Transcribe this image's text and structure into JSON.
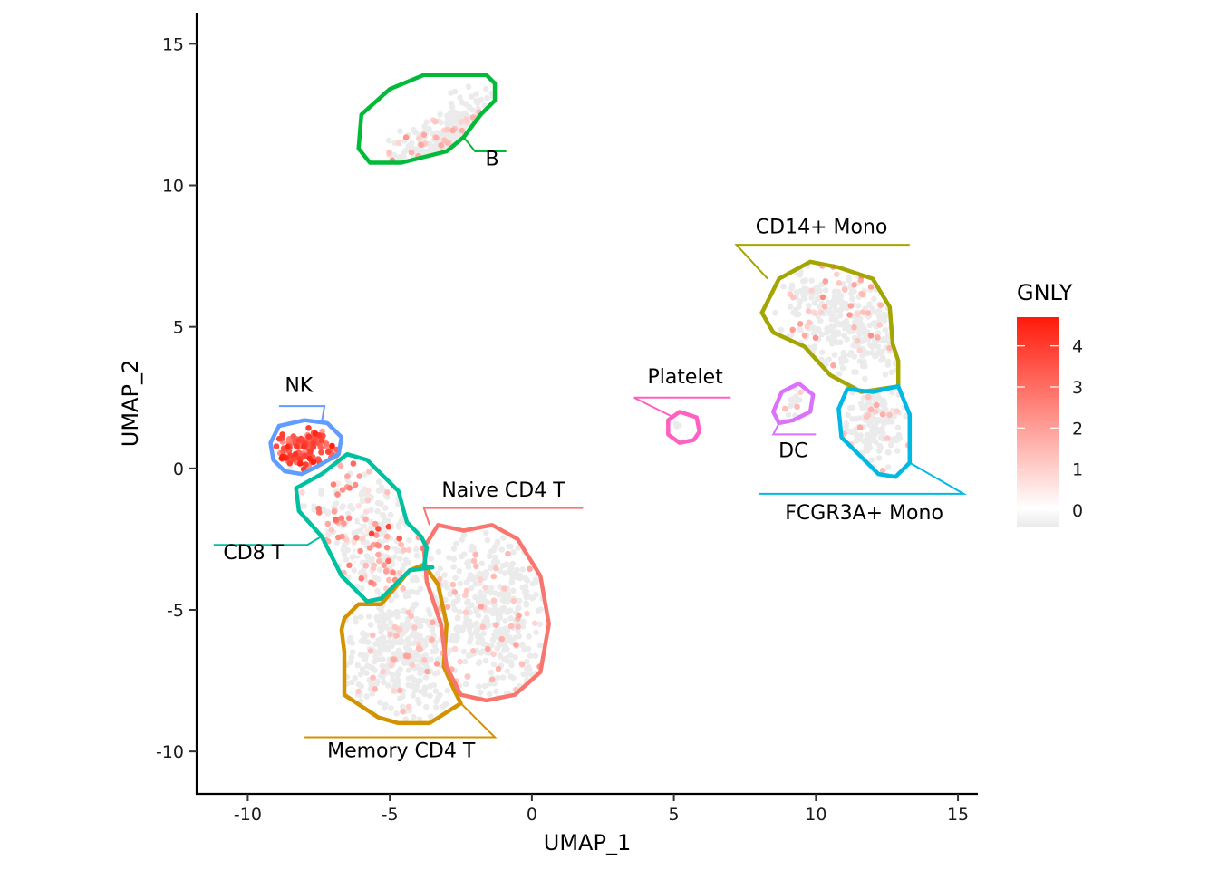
{
  "chart_data": {
    "type": "scatter",
    "title": "",
    "xlabel": "UMAP_1",
    "ylabel": "UMAP_2",
    "xlim": [
      -11.8,
      15.7
    ],
    "ylim": [
      -11.5,
      16.1
    ],
    "x_ticks": [
      -10,
      -5,
      0,
      5,
      10,
      15
    ],
    "x_tick_labels": [
      "-10",
      "-5",
      "0",
      "5",
      "10",
      "15"
    ],
    "y_ticks": [
      -10,
      -5,
      0,
      5,
      10,
      15
    ],
    "y_tick_labels": [
      "-10",
      "-5",
      "0",
      "5",
      "10",
      "15"
    ],
    "grid": false,
    "color_feature": "GNLY",
    "legend": {
      "title": "GNLY",
      "placement": "right",
      "ticks": [
        0,
        1,
        2,
        3,
        4
      ],
      "tick_labels": [
        "0",
        "1",
        "2",
        "3",
        "4"
      ],
      "range": [
        -0.4,
        4.7
      ],
      "low_color": "#ebebeb",
      "mid_color": "#ffffff",
      "high_color": "#ff1a0a"
    },
    "clusters": [
      {
        "name": "B",
        "color": "#00ba38",
        "center": [
          -2.2,
          11.6
        ],
        "spread": [
          1.6,
          0.55
        ],
        "angle": 30,
        "n": 260,
        "expr": 0.1,
        "contour": [
          [
            -6.0,
            12.5
          ],
          [
            -5.0,
            13.4
          ],
          [
            -3.8,
            13.9
          ],
          [
            -1.6,
            13.9
          ],
          [
            -1.3,
            13.6
          ],
          [
            -1.3,
            13.0
          ],
          [
            -1.8,
            12.5
          ],
          [
            -2.4,
            11.7
          ],
          [
            -3.0,
            11.2
          ],
          [
            -4.6,
            10.8
          ],
          [
            -5.7,
            10.8
          ],
          [
            -6.1,
            11.3
          ],
          [
            -6.0,
            12.5
          ]
        ],
        "label_pos": [
          -1.4,
          10.7
        ],
        "leader": [
          [
            -2.4,
            11.7
          ],
          [
            -2.0,
            11.2
          ],
          [
            -0.9,
            11.2
          ]
        ]
      },
      {
        "name": "CD14+ Mono",
        "color": "#a3a500",
        "center": [
          11.1,
          5.2
        ],
        "spread": [
          1.3,
          1.1
        ],
        "angle": -35,
        "n": 330,
        "expr": 0.2,
        "contour": [
          [
            8.1,
            5.5
          ],
          [
            8.7,
            6.7
          ],
          [
            9.8,
            7.3
          ],
          [
            10.8,
            7.1
          ],
          [
            12.0,
            6.7
          ],
          [
            12.6,
            5.7
          ],
          [
            12.7,
            4.4
          ],
          [
            12.9,
            3.8
          ],
          [
            12.9,
            2.9
          ],
          [
            11.6,
            2.7
          ],
          [
            10.5,
            3.3
          ],
          [
            9.6,
            4.3
          ],
          [
            8.5,
            4.8
          ],
          [
            8.1,
            5.5
          ]
        ],
        "label_pos": [
          10.2,
          8.3
        ],
        "leader": [
          [
            13.3,
            7.9
          ],
          [
            7.2,
            7.9
          ],
          [
            8.3,
            6.7
          ]
        ]
      },
      {
        "name": "DC",
        "color": "#db72fb",
        "center": [
          9.3,
          2.3
        ],
        "spread": [
          0.35,
          0.2
        ],
        "angle": 35,
        "n": 14,
        "expr": 0.15,
        "contour": [
          [
            8.5,
            2.0
          ],
          [
            8.8,
            2.7
          ],
          [
            9.4,
            3.0
          ],
          [
            9.9,
            2.6
          ],
          [
            9.8,
            2.0
          ],
          [
            9.2,
            1.7
          ],
          [
            8.7,
            1.6
          ],
          [
            8.5,
            2.0
          ]
        ],
        "label_pos": [
          9.2,
          0.4
        ],
        "leader": [
          [
            8.7,
            1.6
          ],
          [
            8.5,
            1.2
          ],
          [
            10.0,
            1.2
          ]
        ]
      },
      {
        "name": "FCGR3A+ Mono",
        "color": "#00b9e3",
        "center": [
          12.0,
          1.5
        ],
        "spread": [
          0.6,
          0.9
        ],
        "angle": -15,
        "n": 150,
        "expr": 0.2,
        "contour": [
          [
            11.1,
            2.8
          ],
          [
            12.0,
            2.7
          ],
          [
            12.9,
            2.9
          ],
          [
            13.3,
            1.9
          ],
          [
            13.3,
            0.2
          ],
          [
            12.8,
            -0.3
          ],
          [
            12.2,
            -0.2
          ],
          [
            11.6,
            0.4
          ],
          [
            10.9,
            1.1
          ],
          [
            10.8,
            2.1
          ],
          [
            11.1,
            2.8
          ]
        ],
        "label_pos": [
          11.7,
          -1.8
        ],
        "leader": [
          [
            13.3,
            0.2
          ],
          [
            15.2,
            -0.9
          ],
          [
            8.0,
            -0.9
          ]
        ]
      },
      {
        "name": "Memory CD4 T",
        "color": "#d39200",
        "center": [
          -4.5,
          -6.3
        ],
        "spread": [
          1.1,
          1.4
        ],
        "angle": 0,
        "n": 380,
        "expr": 0.15,
        "contour": [
          [
            -6.6,
            -5.3
          ],
          [
            -6.1,
            -4.8
          ],
          [
            -5.3,
            -4.8
          ],
          [
            -4.3,
            -3.6
          ],
          [
            -3.8,
            -3.4
          ],
          [
            -3.3,
            -4.1
          ],
          [
            -3.0,
            -5.5
          ],
          [
            -3.1,
            -7.0
          ],
          [
            -2.7,
            -7.9
          ],
          [
            -2.5,
            -8.3
          ],
          [
            -3.6,
            -9.0
          ],
          [
            -4.7,
            -9.0
          ],
          [
            -5.4,
            -8.8
          ],
          [
            -6.6,
            -8.0
          ],
          [
            -6.6,
            -6.5
          ],
          [
            -6.7,
            -5.7
          ],
          [
            -6.6,
            -5.3
          ]
        ],
        "label_pos": [
          -4.6,
          -10.2
        ],
        "leader": [
          [
            -2.5,
            -8.3
          ],
          [
            -1.3,
            -9.5
          ],
          [
            -8.0,
            -9.5
          ]
        ]
      },
      {
        "name": "Naive CD4 T",
        "color": "#f8766d",
        "center": [
          -1.5,
          -5.3
        ],
        "spread": [
          1.1,
          1.6
        ],
        "angle": 0,
        "n": 420,
        "expr": 0.15,
        "contour": [
          [
            -3.8,
            -2.8
          ],
          [
            -3.3,
            -2.0
          ],
          [
            -2.4,
            -2.2
          ],
          [
            -1.4,
            -2.0
          ],
          [
            -0.5,
            -2.5
          ],
          [
            0.3,
            -3.8
          ],
          [
            0.6,
            -5.5
          ],
          [
            0.3,
            -7.2
          ],
          [
            -0.6,
            -8.0
          ],
          [
            -1.6,
            -8.2
          ],
          [
            -2.5,
            -8.0
          ],
          [
            -3.0,
            -7.0
          ],
          [
            -3.2,
            -5.5
          ],
          [
            -3.7,
            -4.0
          ],
          [
            -3.8,
            -2.8
          ]
        ],
        "label_pos": [
          -1.0,
          -1.0
        ],
        "leader": [
          [
            1.8,
            -1.4
          ],
          [
            -3.8,
            -1.4
          ],
          [
            -3.6,
            -2.0
          ]
        ]
      },
      {
        "name": "NK",
        "color": "#619cff",
        "center": [
          -8.1,
          0.65
        ],
        "spread": [
          0.55,
          0.35
        ],
        "angle": 0,
        "n": 150,
        "expr": 3.1,
        "contour": [
          [
            -9.2,
            0.9
          ],
          [
            -8.9,
            1.5
          ],
          [
            -8.0,
            1.7
          ],
          [
            -7.2,
            1.6
          ],
          [
            -6.7,
            1.1
          ],
          [
            -6.8,
            0.5
          ],
          [
            -7.5,
            0.1
          ],
          [
            -8.1,
            -0.2
          ],
          [
            -8.7,
            -0.1
          ],
          [
            -9.1,
            0.3
          ],
          [
            -9.2,
            0.9
          ]
        ],
        "label_pos": [
          -8.2,
          2.7
        ],
        "leader": [
          [
            -7.4,
            1.6
          ],
          [
            -7.3,
            2.2
          ],
          [
            -8.9,
            2.2
          ]
        ]
      },
      {
        "name": "CD8 T",
        "color": "#00c19f",
        "center": [
          -5.5,
          -2.7
        ],
        "spread": [
          0.9,
          1.6
        ],
        "angle": 32,
        "n": 280,
        "expr": 1.1,
        "contour": [
          [
            -8.3,
            -0.7
          ],
          [
            -7.4,
            -0.2
          ],
          [
            -6.5,
            0.5
          ],
          [
            -5.8,
            0.3
          ],
          [
            -4.7,
            -0.8
          ],
          [
            -4.4,
            -1.9
          ],
          [
            -3.9,
            -2.4
          ],
          [
            -3.7,
            -2.8
          ],
          [
            -3.8,
            -3.5
          ],
          [
            -3.5,
            -3.5
          ],
          [
            -4.3,
            -3.6
          ],
          [
            -5.3,
            -4.6
          ],
          [
            -5.8,
            -4.7
          ],
          [
            -6.7,
            -3.8
          ],
          [
            -7.4,
            -2.4
          ],
          [
            -8.2,
            -1.5
          ],
          [
            -8.3,
            -0.7
          ]
        ],
        "label_pos": [
          -9.8,
          -3.2
        ],
        "leader": [
          [
            -7.4,
            -2.4
          ],
          [
            -7.9,
            -2.7
          ],
          [
            -11.2,
            -2.7
          ]
        ]
      },
      {
        "name": "Platelet",
        "color": "#ff61c3",
        "center": [
          5.2,
          1.45
        ],
        "spread": [
          0.12,
          0.1
        ],
        "angle": 0,
        "n": 4,
        "expr": 0.3,
        "contour": [
          [
            4.8,
            1.7
          ],
          [
            5.2,
            2.0
          ],
          [
            5.8,
            1.8
          ],
          [
            5.9,
            1.3
          ],
          [
            5.7,
            1.0
          ],
          [
            5.2,
            0.9
          ],
          [
            4.8,
            1.2
          ],
          [
            4.8,
            1.7
          ]
        ],
        "label_pos": [
          5.4,
          3.0
        ],
        "leader": [
          [
            5.0,
            1.8
          ],
          [
            3.6,
            2.5
          ],
          [
            7.0,
            2.5
          ]
        ]
      }
    ]
  }
}
